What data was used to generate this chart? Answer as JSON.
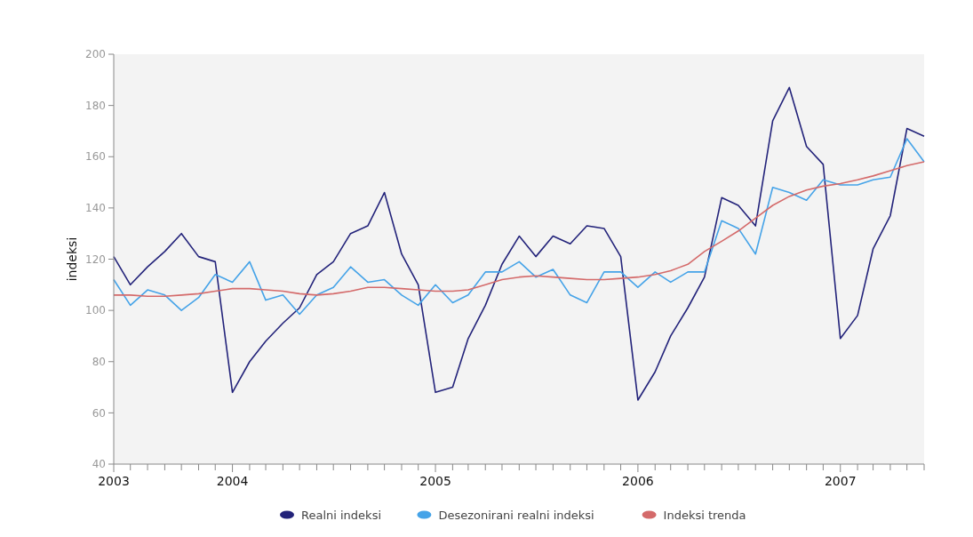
{
  "chart_data": {
    "type": "line",
    "ylabel": "indeksi",
    "x": [
      "2003-06",
      "2003-07",
      "2003-08",
      "2003-09",
      "2003-10",
      "2003-11",
      "2003-12",
      "2004-01",
      "2004-02",
      "2004-03",
      "2004-04",
      "2004-05",
      "2004-06",
      "2004-07",
      "2004-08",
      "2004-09",
      "2004-10",
      "2004-11",
      "2004-12",
      "2005-01",
      "2005-02",
      "2005-03",
      "2005-04",
      "2005-05",
      "2005-06",
      "2005-07",
      "2005-08",
      "2005-09",
      "2005-10",
      "2005-11",
      "2005-12",
      "2006-01",
      "2006-02",
      "2006-03",
      "2006-04",
      "2006-05",
      "2006-06",
      "2006-07",
      "2006-08",
      "2006-09",
      "2006-10",
      "2006-11",
      "2006-12",
      "2007-01",
      "2007-02",
      "2007-03",
      "2007-04",
      "2007-05",
      "2007-06"
    ],
    "series": [
      {
        "name": "Realni indeksi",
        "color": "#23237a",
        "values": [
          121,
          110,
          117,
          123,
          130,
          121,
          119,
          68,
          80,
          88,
          95,
          101,
          114,
          119,
          130,
          133,
          146,
          122,
          110,
          68,
          70,
          89,
          102,
          118,
          129,
          121,
          129,
          126,
          133,
          132,
          121,
          65,
          76,
          90,
          101,
          113,
          144,
          141,
          133,
          174,
          187,
          164,
          157,
          89,
          98,
          124,
          137,
          171,
          168
        ]
      },
      {
        "name": "Desezonirani realni indeksi",
        "color": "#45a3e8",
        "values": [
          112,
          102,
          108,
          106,
          100,
          105,
          114,
          111,
          119,
          104,
          106,
          98.5,
          106,
          109,
          117,
          111,
          112,
          106,
          102,
          110,
          103,
          106,
          115,
          115,
          119,
          113,
          116,
          106,
          103,
          115,
          115,
          109,
          115,
          111,
          115,
          115,
          135,
          132,
          122,
          148,
          146,
          143,
          151,
          149,
          149,
          151,
          152,
          167,
          158
        ]
      },
      {
        "name": "Indeksi trenda",
        "color": "#d46a6a",
        "values": [
          106,
          106,
          105.5,
          105.5,
          106,
          106.5,
          107.5,
          108.5,
          108.5,
          108,
          107.5,
          106.5,
          106,
          106.5,
          107.5,
          109,
          109,
          108.5,
          108,
          107.5,
          107.5,
          108,
          110,
          112,
          113,
          113.5,
          113,
          112.5,
          112,
          112,
          112.5,
          113,
          114,
          115.5,
          118,
          123,
          127,
          131,
          136,
          141,
          144.5,
          147,
          148.5,
          149.5,
          151,
          152.5,
          154.5,
          156.5,
          158
        ]
      }
    ],
    "xlim": [
      "2003-06",
      "2007-06"
    ],
    "xticks": [
      {
        "value": "2003-06",
        "label": "2003"
      },
      {
        "value": "2003-07",
        "label": null
      },
      {
        "value": "2003-08",
        "label": null
      },
      {
        "value": "2003-09",
        "label": null
      },
      {
        "value": "2003-10",
        "label": null
      },
      {
        "value": "2003-11",
        "label": null
      },
      {
        "value": "2003-12",
        "label": null
      },
      {
        "value": "2004-01",
        "label": "2004"
      },
      {
        "value": "2004-02",
        "label": null
      },
      {
        "value": "2004-03",
        "label": null
      },
      {
        "value": "2004-04",
        "label": null
      },
      {
        "value": "2004-05",
        "label": null
      },
      {
        "value": "2004-06",
        "label": null
      },
      {
        "value": "2004-07",
        "label": null
      },
      {
        "value": "2004-08",
        "label": null
      },
      {
        "value": "2004-09",
        "label": null
      },
      {
        "value": "2004-10",
        "label": null
      },
      {
        "value": "2004-11",
        "label": null
      },
      {
        "value": "2004-12",
        "label": null
      },
      {
        "value": "2005-01",
        "label": "2005"
      },
      {
        "value": "2005-02",
        "label": null
      },
      {
        "value": "2005-03",
        "label": null
      },
      {
        "value": "2005-04",
        "label": null
      },
      {
        "value": "2005-05",
        "label": null
      },
      {
        "value": "2005-06",
        "label": null
      },
      {
        "value": "2005-07",
        "label": null
      },
      {
        "value": "2005-08",
        "label": null
      },
      {
        "value": "2005-09",
        "label": null
      },
      {
        "value": "2005-10",
        "label": null
      },
      {
        "value": "2005-11",
        "label": null
      },
      {
        "value": "2005-12",
        "label": null
      },
      {
        "value": "2006-01",
        "label": "2006"
      },
      {
        "value": "2006-02",
        "label": null
      },
      {
        "value": "2006-03",
        "label": null
      },
      {
        "value": "2006-04",
        "label": null
      },
      {
        "value": "2006-05",
        "label": null
      },
      {
        "value": "2006-06",
        "label": null
      },
      {
        "value": "2006-07",
        "label": null
      },
      {
        "value": "2006-08",
        "label": null
      },
      {
        "value": "2006-09",
        "label": null
      },
      {
        "value": "2006-10",
        "label": null
      },
      {
        "value": "2006-11",
        "label": null
      },
      {
        "value": "2006-12",
        "label": null
      },
      {
        "value": "2007-01",
        "label": "2007"
      },
      {
        "value": "2007-02",
        "label": null
      },
      {
        "value": "2007-03",
        "label": null
      },
      {
        "value": "2007-04",
        "label": null
      },
      {
        "value": "2007-05",
        "label": null
      },
      {
        "value": "2007-06",
        "label": null
      }
    ],
    "ylim": [
      40,
      200
    ],
    "yticks": [
      40,
      60,
      80,
      100,
      120,
      140,
      160,
      180,
      200
    ],
    "grid": false,
    "legend": "bottom",
    "marker": "none",
    "line_style": "solid"
  }
}
